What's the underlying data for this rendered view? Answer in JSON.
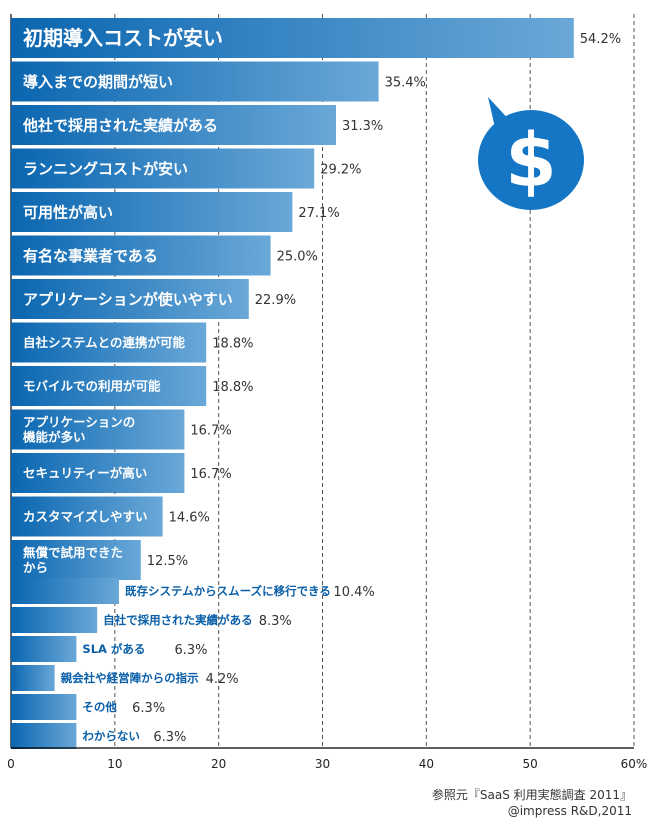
{
  "chart_data": {
    "type": "bar",
    "orientation": "horizontal",
    "categories": [
      "初期導入コストが安い",
      "導入までの期間が短い",
      "他社で採用された実績がある",
      "ランニングコストが安い",
      "可用性が高い",
      "有名な事業者である",
      "アプリケーションが使いやすい",
      "自社システムとの連携が可能",
      "モバイルでの利用が可能",
      "アプリケーションの\n機能が多い",
      "セキュリティーが高い",
      "カスタマイズしやすい",
      "無償で試用できた\nから",
      "既存システムからスムーズに移行できる",
      "自社で採用された実績がある",
      "SLA がある",
      "親会社や経営陣からの指示",
      "その他",
      "わからない"
    ],
    "values": [
      54.2,
      35.4,
      31.3,
      29.2,
      27.1,
      25.0,
      22.9,
      18.8,
      18.8,
      16.7,
      16.7,
      14.6,
      12.5,
      10.4,
      8.3,
      6.3,
      4.2,
      6.3,
      6.3
    ],
    "value_labels": [
      "54.2%",
      "35.4%",
      "31.3%",
      "29.2%",
      "27.1%",
      "25.0%",
      "22.9%",
      "18.8%",
      "18.8%",
      "16.7%",
      "16.7%",
      "14.6%",
      "12.5%",
      "10.4%",
      "8.3%",
      "6.3%",
      "4.2%",
      "6.3%",
      "6.3%"
    ],
    "xlim": [
      0,
      60
    ],
    "xticks": [
      0,
      10,
      20,
      30,
      40,
      50,
      60
    ],
    "xtick_labels": [
      "0",
      "10",
      "20",
      "30",
      "40",
      "50",
      "60%"
    ],
    "grid": true,
    "colors": {
      "bar_dark": "#0a66b0",
      "bar_light": "#6aa8d8",
      "label_blue": "#0a5fa8",
      "icon_blue": "#1576c5"
    },
    "icon": "dollar-speech-bubble-icon"
  },
  "source": {
    "line1": "参照元『SaaS 利用実態調査 2011』",
    "line2": "@impress R&D,2011"
  }
}
